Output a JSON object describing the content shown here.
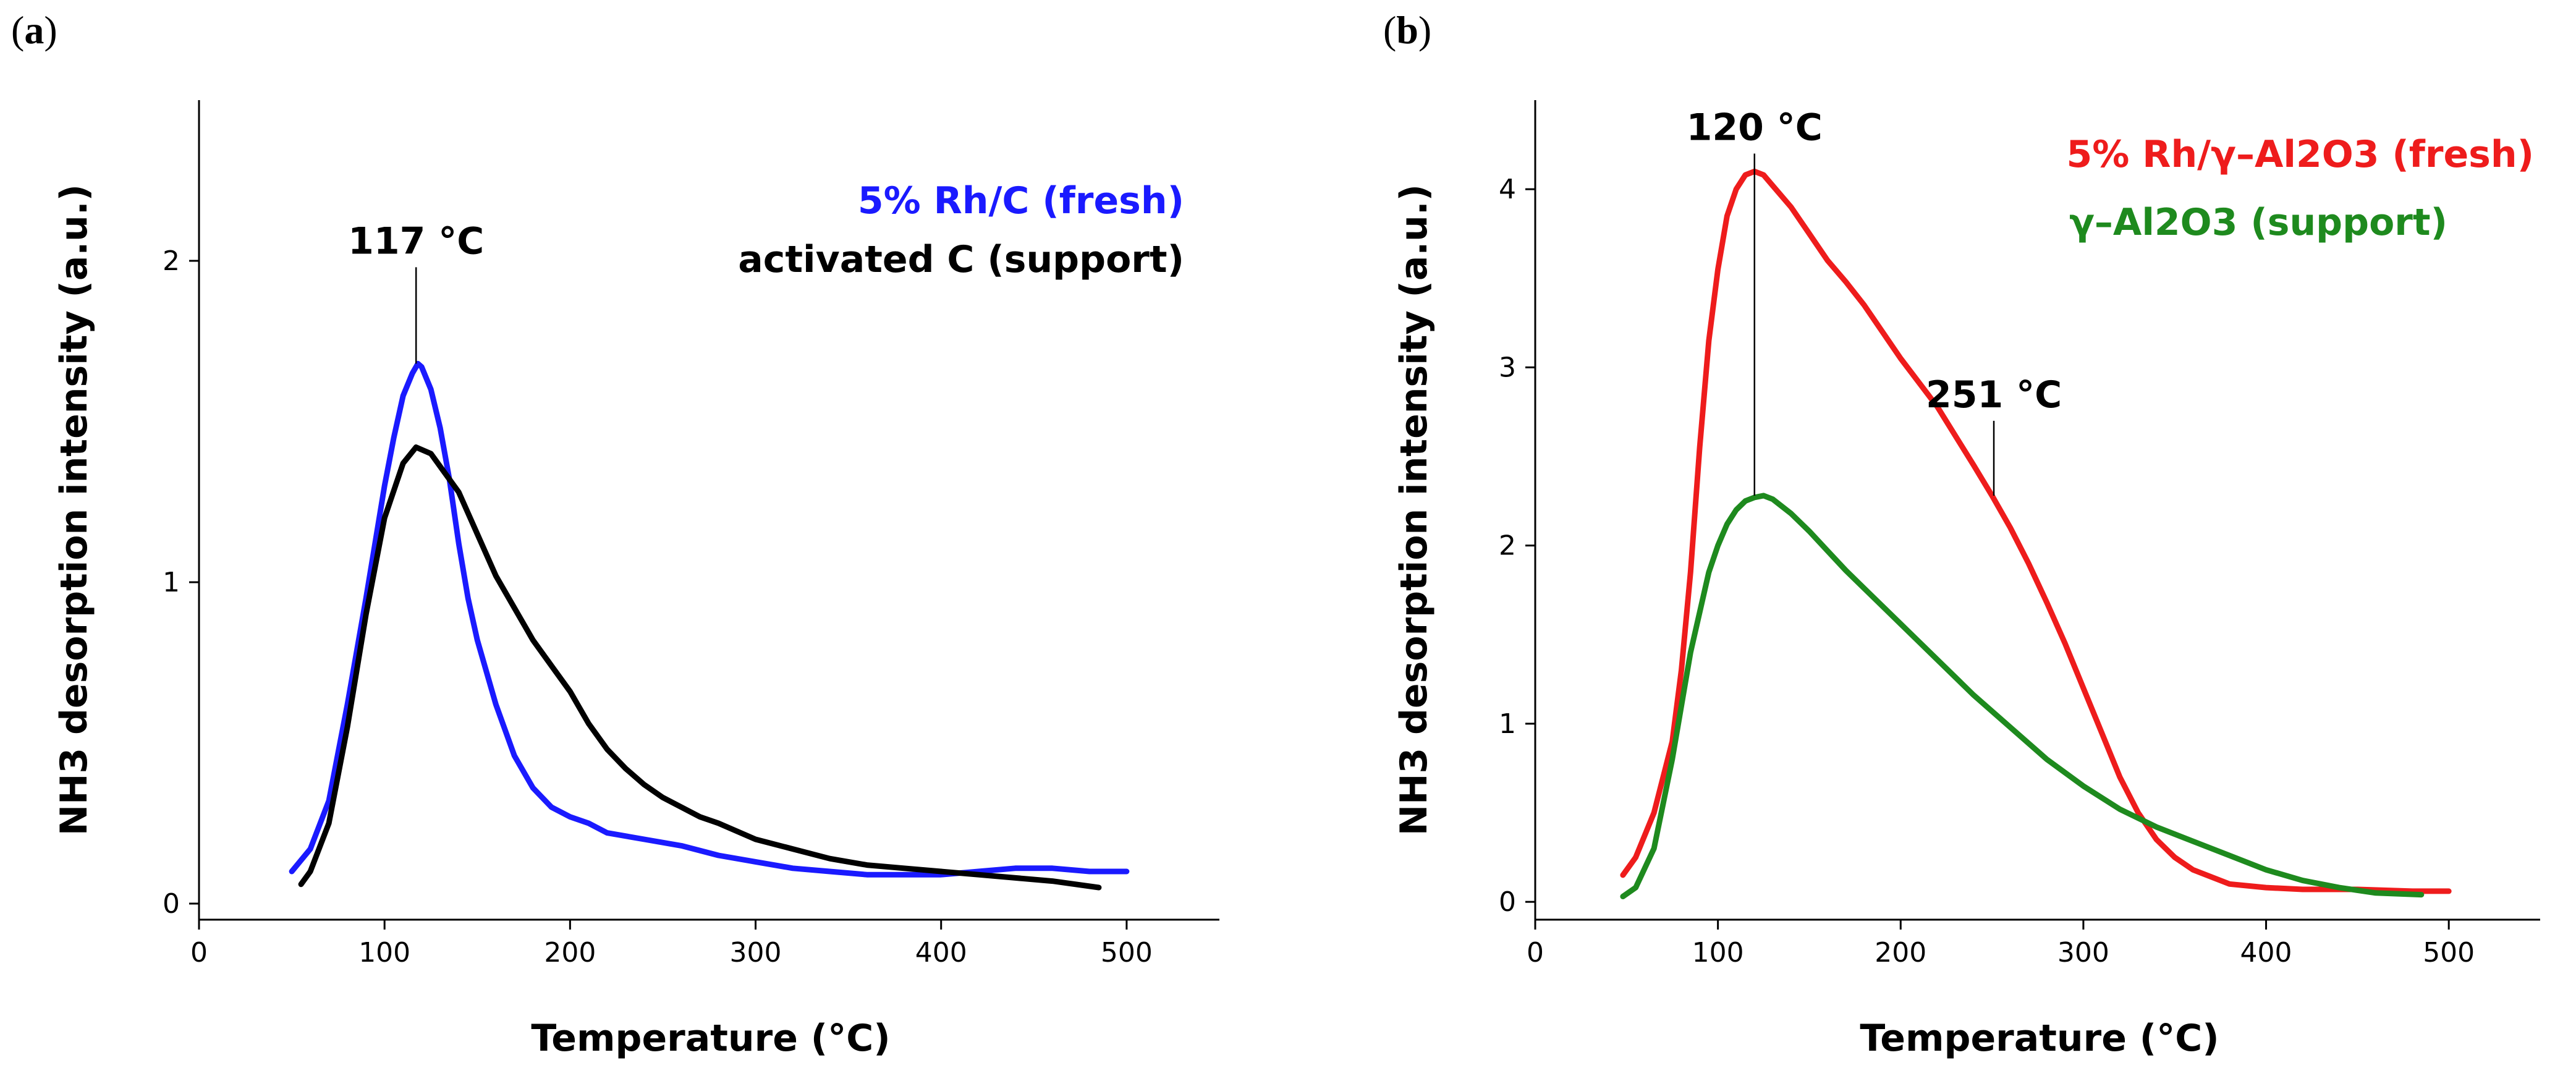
{
  "chart_data": [
    {
      "type": "line",
      "panel_label": "a",
      "xlabel": "Temperature (°C)",
      "ylabel": "NH3 desorption intensity (a.u.)",
      "xlim": [
        0,
        550
      ],
      "ylim": [
        -0.05,
        2.5
      ],
      "xticks": [
        0,
        100,
        200,
        300,
        400,
        500
      ],
      "yticks": [
        0,
        1,
        2
      ],
      "legend_position": "top-right",
      "series": [
        {
          "name": "5% Rh/C (fresh)",
          "color": "#1a1aff",
          "x": [
            50,
            60,
            70,
            80,
            90,
            100,
            105,
            110,
            115,
            118,
            120,
            125,
            130,
            135,
            140,
            145,
            150,
            160,
            170,
            180,
            190,
            200,
            210,
            220,
            240,
            260,
            280,
            300,
            320,
            340,
            360,
            380,
            400,
            420,
            440,
            460,
            480,
            500
          ],
          "y": [
            0.1,
            0.17,
            0.32,
            0.62,
            0.95,
            1.3,
            1.45,
            1.58,
            1.65,
            1.68,
            1.67,
            1.6,
            1.48,
            1.32,
            1.12,
            0.95,
            0.82,
            0.62,
            0.46,
            0.36,
            0.3,
            0.27,
            0.25,
            0.22,
            0.2,
            0.18,
            0.15,
            0.13,
            0.11,
            0.1,
            0.09,
            0.09,
            0.09,
            0.1,
            0.11,
            0.11,
            0.1,
            0.1
          ]
        },
        {
          "name": "activated C (support)",
          "color": "#000000",
          "x": [
            55,
            60,
            70,
            80,
            90,
            100,
            110,
            117,
            125,
            130,
            140,
            150,
            160,
            170,
            180,
            190,
            200,
            210,
            220,
            230,
            240,
            250,
            260,
            270,
            280,
            300,
            320,
            340,
            360,
            380,
            400,
            420,
            440,
            460,
            485
          ],
          "y": [
            0.06,
            0.1,
            0.25,
            0.55,
            0.9,
            1.2,
            1.37,
            1.42,
            1.4,
            1.36,
            1.28,
            1.15,
            1.02,
            0.92,
            0.82,
            0.74,
            0.66,
            0.56,
            0.48,
            0.42,
            0.37,
            0.33,
            0.3,
            0.27,
            0.25,
            0.2,
            0.17,
            0.14,
            0.12,
            0.11,
            0.1,
            0.09,
            0.08,
            0.07,
            0.05
          ]
        }
      ],
      "annotations": [
        {
          "text": "117 °C",
          "x": 117,
          "y_top": 1.98,
          "y_bottom": 1.68
        }
      ]
    },
    {
      "type": "line",
      "panel_label": "b",
      "xlabel": "Temperature (°C)",
      "ylabel": "NH3 desorption intensity (a.u.)",
      "xlim": [
        0,
        550
      ],
      "ylim": [
        -0.1,
        4.5
      ],
      "xticks": [
        0,
        100,
        200,
        300,
        400,
        500
      ],
      "yticks": [
        0,
        1,
        2,
        3,
        4
      ],
      "legend_position": "top-right",
      "series": [
        {
          "name": "5% Rh/γ–Al2O3 (fresh)",
          "color": "#ee1c1c",
          "x": [
            48,
            55,
            65,
            75,
            80,
            85,
            90,
            95,
            100,
            105,
            110,
            115,
            120,
            125,
            130,
            140,
            150,
            160,
            170,
            180,
            200,
            220,
            240,
            250,
            260,
            270,
            280,
            290,
            300,
            310,
            320,
            330,
            340,
            350,
            360,
            380,
            400,
            420,
            450,
            480,
            500
          ],
          "y": [
            0.15,
            0.25,
            0.5,
            0.9,
            1.3,
            1.85,
            2.55,
            3.15,
            3.55,
            3.85,
            4.0,
            4.08,
            4.1,
            4.08,
            4.02,
            3.9,
            3.75,
            3.6,
            3.48,
            3.35,
            3.05,
            2.78,
            2.45,
            2.28,
            2.1,
            1.9,
            1.68,
            1.45,
            1.2,
            0.95,
            0.7,
            0.5,
            0.35,
            0.25,
            0.18,
            0.1,
            0.08,
            0.07,
            0.07,
            0.06,
            0.06
          ]
        },
        {
          "name": "γ–Al2O3 (support)",
          "color": "#1e8a1e",
          "x": [
            48,
            55,
            65,
            75,
            85,
            95,
            100,
            105,
            110,
            115,
            120,
            125,
            130,
            140,
            150,
            160,
            170,
            180,
            200,
            220,
            240,
            260,
            280,
            300,
            320,
            340,
            360,
            380,
            400,
            420,
            440,
            460,
            485
          ],
          "y": [
            0.03,
            0.08,
            0.3,
            0.8,
            1.4,
            1.85,
            2.0,
            2.12,
            2.2,
            2.25,
            2.27,
            2.28,
            2.26,
            2.18,
            2.08,
            1.97,
            1.86,
            1.76,
            1.56,
            1.36,
            1.16,
            0.98,
            0.8,
            0.65,
            0.52,
            0.42,
            0.34,
            0.26,
            0.18,
            0.12,
            0.08,
            0.05,
            0.04
          ]
        }
      ],
      "annotations": [
        {
          "text": "120 °C",
          "x": 120,
          "y_top": 4.2,
          "y_bottom": 2.28
        },
        {
          "text": "251 °C",
          "x": 251,
          "y_top": 2.7,
          "y_bottom": 2.28
        }
      ]
    }
  ]
}
